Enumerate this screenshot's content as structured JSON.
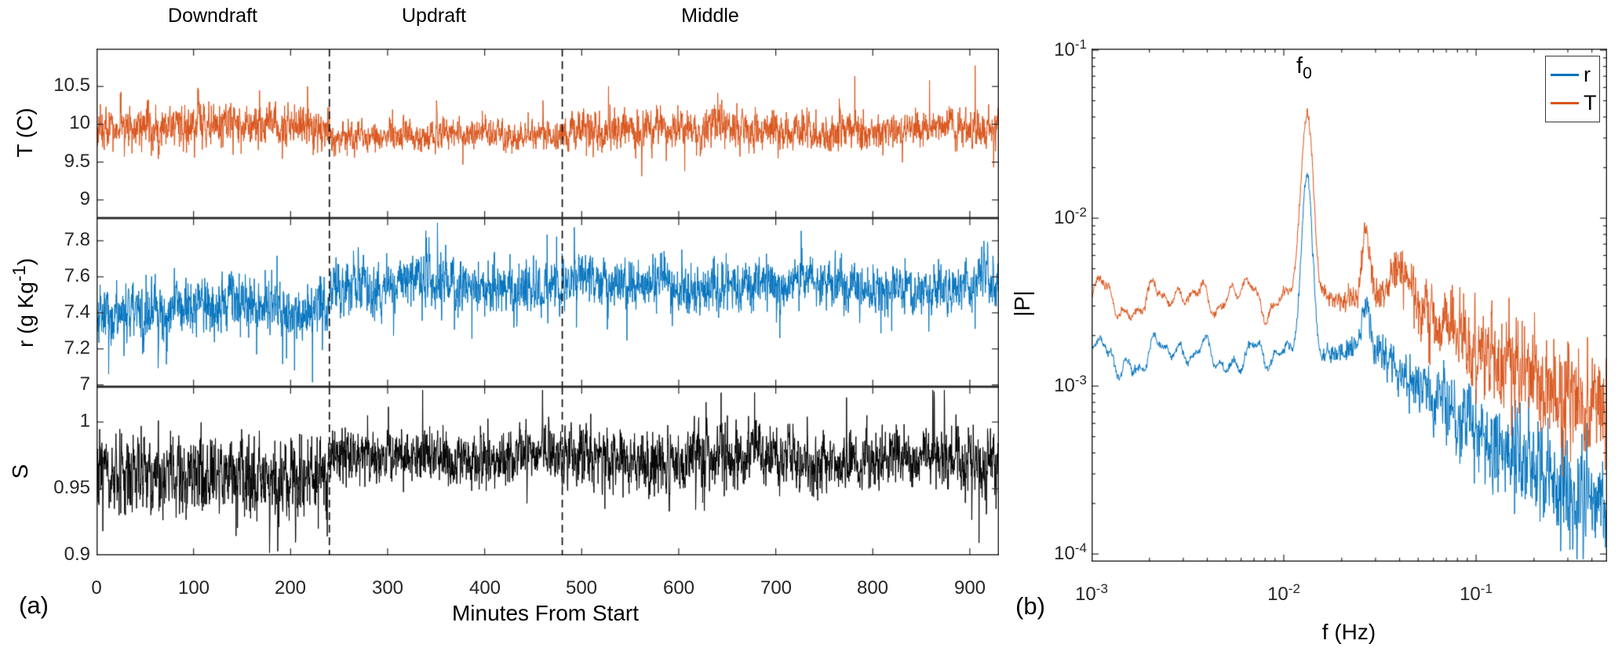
{
  "figure": {
    "description": "Two-panel scientific figure: (a) time series of temperature T, water vapor mixing ratio r, and saturation ratio S during Downdraft, Updraft and Middle sampling periods; (b) log-log power spectra |P| of r and T with peak at f0.",
    "background": "#ffffff"
  },
  "colors": {
    "T": "#d95319",
    "r": "#0072bd",
    "S": "#000000",
    "axis": "#262626",
    "dashed_line": "#111111",
    "legend_border": "#3a3a3a"
  },
  "chart_data": [
    {
      "type": "line",
      "panel": "a",
      "panel_label": "(a)",
      "xlabel": "Minutes From Start",
      "xlim": [
        0,
        930
      ],
      "xticks": [
        0,
        100,
        200,
        300,
        400,
        500,
        600,
        700,
        800,
        900
      ],
      "grid": false,
      "dashed_lines_min": [
        240,
        480
      ],
      "regions": [
        {
          "label": "Downdraft",
          "start_min": 0,
          "end_min": 240,
          "label_center_min": 120
        },
        {
          "label": "Updraft",
          "start_min": 240,
          "end_min": 480,
          "label_center_min": 348
        },
        {
          "label": "Middle",
          "start_min": 480,
          "end_min": 930,
          "label_center_min": 632
        }
      ],
      "subplots": [
        {
          "name": "T",
          "ylabel": "T (C)",
          "color": "#d95319",
          "ylim": [
            8.76,
            11.0
          ],
          "yticks": [
            9,
            9.5,
            10,
            10.5
          ],
          "ytick_labels": [
            "9",
            "9.5",
            "10",
            "10.5"
          ],
          "seed": 42,
          "wander": 0.05,
          "clip": [
            8.9,
            10.78
          ],
          "segments": [
            {
              "period": "Downdraft",
              "start_min": 0,
              "end_min": 240,
              "mean": 9.97,
              "sd": 0.155
            },
            {
              "period": "Updraft",
              "start_min": 240,
              "end_min": 480,
              "mean": 9.86,
              "sd": 0.105
            },
            {
              "period": "Middle",
              "start_min": 480,
              "end_min": 930,
              "mean": 9.92,
              "sd": 0.14
            }
          ]
        },
        {
          "name": "r",
          "ylabel_pre": "r (g Kg",
          "ylabel_sup": "-1",
          "ylabel_post": ")",
          "color": "#0072bd",
          "ylim": [
            6.99,
            7.926
          ],
          "yticks": [
            7,
            7.2,
            7.4,
            7.6,
            7.8
          ],
          "ytick_labels": [
            "7",
            "7.2",
            "7.4",
            "7.6",
            "7.8"
          ],
          "seed": 1337,
          "wander": 0.045,
          "clip": [
            6.995,
            7.9
          ],
          "segments": [
            {
              "period": "Downdraft",
              "start_min": 0,
              "end_min": 240,
              "mean": 7.44,
              "sd": 0.085
            },
            {
              "period": "Updraft",
              "start_min": 240,
              "end_min": 480,
              "mean": 7.555,
              "sd": 0.08
            },
            {
              "period": "Middle",
              "start_min": 480,
              "end_min": 930,
              "mean": 7.55,
              "sd": 0.072
            }
          ]
        },
        {
          "name": "S",
          "ylabel": "S",
          "color": "#000000",
          "ylim": [
            0.9,
            1.0265
          ],
          "yticks": [
            0.9,
            0.95,
            1
          ],
          "ytick_labels": [
            "0.9",
            "0.95",
            "1"
          ],
          "seed": 7,
          "wander": 0.004,
          "clip": [
            0.902,
            1.024
          ],
          "segments": [
            {
              "period": "Downdraft",
              "start_min": 0,
              "end_min": 240,
              "mean": 0.9615,
              "sd": 0.0165
            },
            {
              "period": "Updraft",
              "start_min": 240,
              "end_min": 480,
              "mean": 0.9735,
              "sd": 0.0115
            },
            {
              "period": "Middle",
              "start_min": 480,
              "end_min": 930,
              "mean": 0.9725,
              "sd": 0.0125
            }
          ]
        }
      ]
    },
    {
      "type": "line",
      "panel": "b",
      "panel_label": "(b)",
      "xscale": "log",
      "yscale": "log",
      "xlabel": "f (Hz)",
      "ylabel": "|P|",
      "xlim": [
        0.001,
        0.48
      ],
      "ylim": [
        0.0001,
        0.1
      ],
      "xticks": [
        {
          "v": 0.001,
          "m": "10",
          "e": "-3"
        },
        {
          "v": 0.01,
          "m": "10",
          "e": "-2"
        },
        {
          "v": 0.1,
          "m": "10",
          "e": "-1"
        }
      ],
      "yticks": [
        {
          "v": 0.1,
          "m": "10",
          "e": "-1"
        },
        {
          "v": 0.01,
          "m": "10",
          "e": "-2"
        },
        {
          "v": 0.001,
          "m": "10",
          "e": "-3"
        },
        {
          "v": 0.0001,
          "m": "10",
          "e": "-4"
        }
      ],
      "annotation": {
        "text": "f",
        "sub": "0",
        "f_hz": 0.013
      },
      "legend": [
        {
          "label": "r",
          "color": "#0072bd"
        },
        {
          "label": "T",
          "color": "#d95319"
        }
      ],
      "series": [
        {
          "name": "r",
          "color": "#0072bd",
          "seed": 99,
          "low_f_level": 0.0022,
          "peak_f_hz": 0.013,
          "peak_value": 0.018,
          "end_value": 0.0002,
          "anchors_loglog": [
            [
              -3,
              -2.64
            ],
            [
              -2.87,
              -2.93
            ],
            [
              -2.7,
              -2.8
            ],
            [
              -2.52,
              -2.77
            ],
            [
              -2.3,
              -2.86
            ],
            [
              -2.1,
              -2.81
            ],
            [
              -1.95,
              -2.76
            ],
            [
              -1.877,
              -2.76
            ],
            [
              -1.75,
              -2.82
            ],
            [
              -1.6,
              -2.76
            ],
            [
              -1.5,
              -2.8
            ],
            [
              -1.38,
              -2.92
            ],
            [
              -1.2,
              -3.08
            ],
            [
              -1.0,
              -3.25
            ],
            [
              -0.8,
              -3.42
            ],
            [
              -0.6,
              -3.56
            ],
            [
              -0.44,
              -3.65
            ],
            [
              -0.3187,
              -3.73
            ]
          ],
          "peaks": [
            {
              "logf": -1.877,
              "height": 1.01,
              "sigma": 0.027
            },
            {
              "logf": -1.572,
              "height": 0.24,
              "sigma": 0.02
            }
          ]
        },
        {
          "name": "T",
          "color": "#d95319",
          "seed": 55,
          "low_f_level": 0.004,
          "peak_f_hz": 0.013,
          "peak_value": 0.044,
          "end_value": 0.0007,
          "anchors_loglog": [
            [
              -3,
              -2.39
            ],
            [
              -2.82,
              -2.56
            ],
            [
              -2.6,
              -2.43
            ],
            [
              -2.38,
              -2.5
            ],
            [
              -2.2,
              -2.43
            ],
            [
              -2.05,
              -2.53
            ],
            [
              -1.95,
              -2.44
            ],
            [
              -1.877,
              -2.45
            ],
            [
              -1.75,
              -2.5
            ],
            [
              -1.62,
              -2.48
            ],
            [
              -1.5,
              -2.44
            ],
            [
              -1.42,
              -2.4
            ],
            [
              -1.32,
              -2.5
            ],
            [
              -1.15,
              -2.62
            ],
            [
              -0.95,
              -2.78
            ],
            [
              -0.75,
              -2.92
            ],
            [
              -0.55,
              -3.05
            ],
            [
              -0.3187,
              -3.17
            ]
          ],
          "peaks": [
            {
              "logf": -1.877,
              "height": 1.09,
              "sigma": 0.032
            },
            {
              "logf": -1.572,
              "height": 0.4,
              "sigma": 0.02
            },
            {
              "logf": -1.4,
              "height": 0.14,
              "sigma": 0.035
            }
          ]
        }
      ]
    }
  ]
}
